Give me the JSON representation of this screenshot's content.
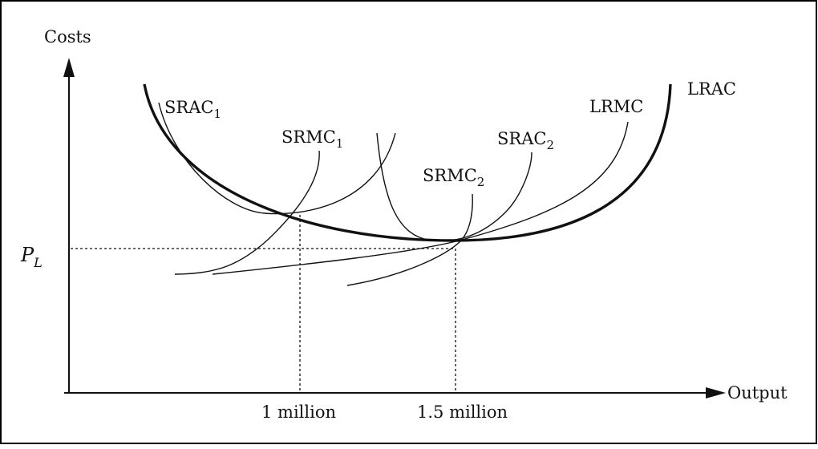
{
  "axes": {
    "y_label": "Costs",
    "x_label": "Output"
  },
  "price": {
    "symbol": "P",
    "subscript": "L"
  },
  "ticks": {
    "q1": "1 million",
    "q2": "1.5 million"
  },
  "curves": {
    "lrac": "LRAC",
    "lrmc": "LRMC",
    "srac1_base": "SRAC",
    "srac1_sub": "1",
    "srmc1_base": "SRMC",
    "srmc1_sub": "1",
    "srac2_base": "SRAC",
    "srac2_sub": "2",
    "srmc2_base": "SRMC",
    "srmc2_sub": "2"
  },
  "colors": {
    "ink": "#111111",
    "frame": "#000000",
    "background": "#ffffff"
  }
}
